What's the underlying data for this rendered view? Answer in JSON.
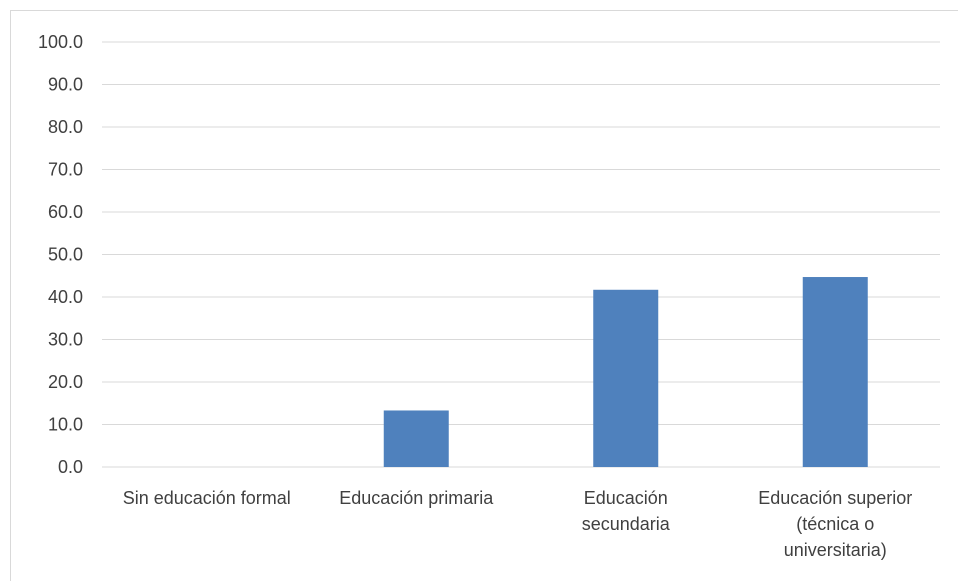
{
  "chart_data": {
    "type": "bar",
    "categories": [
      [
        "Sin educación formal"
      ],
      [
        "Educación primaria"
      ],
      [
        "Educación",
        "secundaria"
      ],
      [
        "Educación superior",
        "(técnica o",
        "universitaria)"
      ]
    ],
    "values": [
      0,
      13.3,
      41.7,
      44.7
    ],
    "ylim": [
      0,
      100
    ],
    "yticks": [
      "0.0",
      "10.0",
      "20.0",
      "30.0",
      "40.0",
      "50.0",
      "60.0",
      "70.0",
      "80.0",
      "90.0",
      "100.0"
    ],
    "grid": true,
    "legend": "none",
    "bar_color": "#4f81bd",
    "grid_color": "#d9d9d9",
    "axis_color": "#d9d9d9",
    "text_color": "#404040"
  }
}
